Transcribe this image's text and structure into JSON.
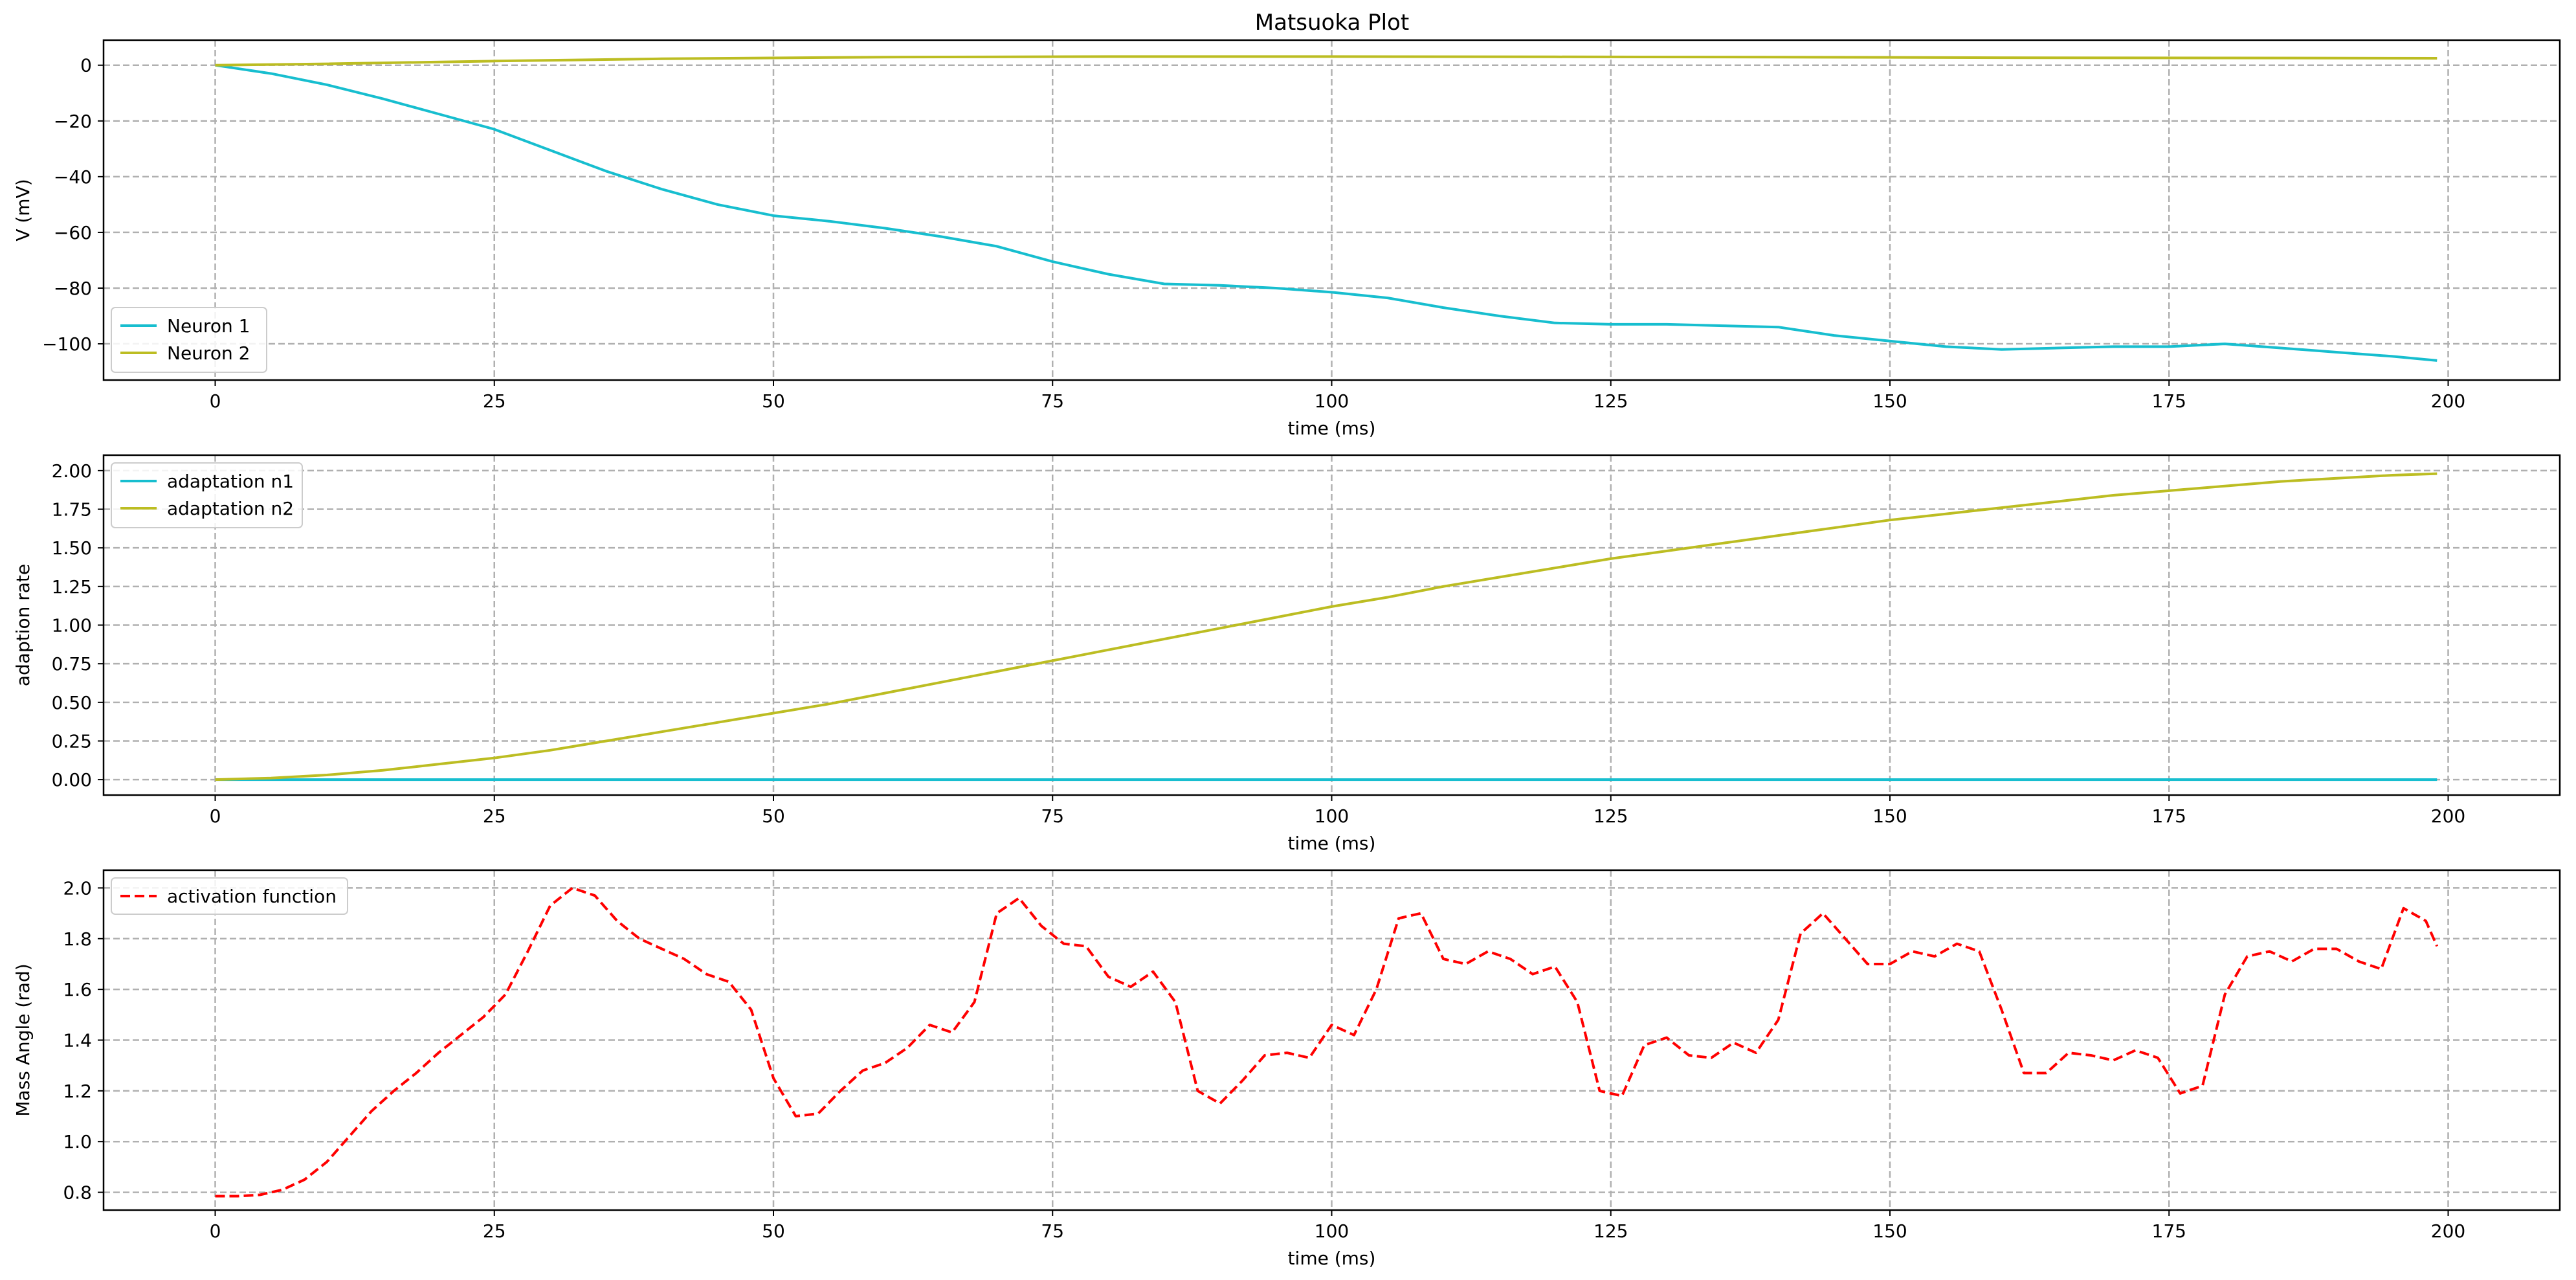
{
  "figure": {
    "title": "Matsuoka Plot"
  },
  "chart_data": [
    {
      "type": "line",
      "xlabel": "time (ms)",
      "ylabel": "V (mV)",
      "xlim": [
        -10,
        210
      ],
      "ylim": [
        -113,
        9
      ],
      "xticks": [
        0,
        25,
        50,
        75,
        100,
        125,
        150,
        175,
        200
      ],
      "yticks": [
        0,
        -20,
        -40,
        -60,
        -80,
        -100
      ],
      "grid": true,
      "legend_position": "lower-left",
      "series": [
        {
          "name": "Neuron 1",
          "color": "#17becf",
          "dash": "solid",
          "points": [
            [
              0,
              0
            ],
            [
              5,
              -3
            ],
            [
              10,
              -7
            ],
            [
              15,
              -12
            ],
            [
              20,
              -17.5
            ],
            [
              25,
              -23
            ],
            [
              30,
              -30.5
            ],
            [
              35,
              -38
            ],
            [
              40,
              -44.5
            ],
            [
              45,
              -50
            ],
            [
              50,
              -54
            ],
            [
              55,
              -56
            ],
            [
              60,
              -58.5
            ],
            [
              65,
              -61.5
            ],
            [
              70,
              -65
            ],
            [
              75,
              -70.5
            ],
            [
              80,
              -75
            ],
            [
              85,
              -78.5
            ],
            [
              90,
              -79
            ],
            [
              95,
              -80
            ],
            [
              100,
              -81.5
            ],
            [
              105,
              -83.5
            ],
            [
              110,
              -87
            ],
            [
              115,
              -90
            ],
            [
              120,
              -92.5
            ],
            [
              125,
              -93
            ],
            [
              130,
              -93
            ],
            [
              135,
              -93.5
            ],
            [
              140,
              -94
            ],
            [
              145,
              -97
            ],
            [
              150,
              -99
            ],
            [
              155,
              -101
            ],
            [
              160,
              -102
            ],
            [
              165,
              -101.5
            ],
            [
              170,
              -101
            ],
            [
              175,
              -101
            ],
            [
              180,
              -100
            ],
            [
              185,
              -101.5
            ],
            [
              190,
              -103
            ],
            [
              195,
              -104.5
            ],
            [
              199,
              -106
            ]
          ]
        },
        {
          "name": "Neuron 2",
          "color": "#bcbd22",
          "dash": "solid",
          "points": [
            [
              0,
              0
            ],
            [
              10,
              0.5
            ],
            [
              25,
              1.5
            ],
            [
              40,
              2.3
            ],
            [
              60,
              2.9
            ],
            [
              80,
              3.1
            ],
            [
              100,
              3.1
            ],
            [
              120,
              3.0
            ],
            [
              140,
              2.9
            ],
            [
              160,
              2.7
            ],
            [
              180,
              2.6
            ],
            [
              199,
              2.5
            ]
          ]
        }
      ]
    },
    {
      "type": "line",
      "xlabel": "time (ms)",
      "ylabel": "adaption rate",
      "xlim": [
        -10,
        210
      ],
      "ylim": [
        -0.1,
        2.1
      ],
      "xticks": [
        0,
        25,
        50,
        75,
        100,
        125,
        150,
        175,
        200
      ],
      "yticks": [
        "0.00",
        "0.25",
        "0.50",
        "0.75",
        "1.00",
        "1.25",
        "1.50",
        "1.75",
        "2.00"
      ],
      "grid": true,
      "legend_position": "upper-left",
      "series": [
        {
          "name": "adaptation n1",
          "color": "#17becf",
          "dash": "solid",
          "points": [
            [
              0,
              0
            ],
            [
              199,
              0
            ]
          ]
        },
        {
          "name": "adaptation n2",
          "color": "#bcbd22",
          "dash": "solid",
          "points": [
            [
              0,
              0
            ],
            [
              5,
              0.01
            ],
            [
              10,
              0.03
            ],
            [
              15,
              0.06
            ],
            [
              20,
              0.1
            ],
            [
              25,
              0.14
            ],
            [
              30,
              0.19
            ],
            [
              35,
              0.25
            ],
            [
              40,
              0.31
            ],
            [
              45,
              0.37
            ],
            [
              50,
              0.43
            ],
            [
              55,
              0.49
            ],
            [
              60,
              0.56
            ],
            [
              65,
              0.63
            ],
            [
              70,
              0.7
            ],
            [
              75,
              0.77
            ],
            [
              80,
              0.84
            ],
            [
              85,
              0.91
            ],
            [
              90,
              0.98
            ],
            [
              95,
              1.05
            ],
            [
              100,
              1.12
            ],
            [
              105,
              1.18
            ],
            [
              110,
              1.25
            ],
            [
              115,
              1.31
            ],
            [
              120,
              1.37
            ],
            [
              125,
              1.43
            ],
            [
              130,
              1.48
            ],
            [
              135,
              1.53
            ],
            [
              140,
              1.58
            ],
            [
              145,
              1.63
            ],
            [
              150,
              1.68
            ],
            [
              155,
              1.72
            ],
            [
              160,
              1.76
            ],
            [
              165,
              1.8
            ],
            [
              170,
              1.84
            ],
            [
              175,
              1.87
            ],
            [
              180,
              1.9
            ],
            [
              185,
              1.93
            ],
            [
              190,
              1.95
            ],
            [
              195,
              1.97
            ],
            [
              199,
              1.98
            ]
          ]
        }
      ]
    },
    {
      "type": "line",
      "xlabel": "time (ms)",
      "ylabel": "Mass Angle (rad)",
      "xlim": [
        -10,
        210
      ],
      "ylim": [
        0.73,
        2.07
      ],
      "xticks": [
        0,
        25,
        50,
        75,
        100,
        125,
        150,
        175,
        200
      ],
      "yticks": [
        "0.8",
        "1.0",
        "1.2",
        "1.4",
        "1.6",
        "1.8",
        "2.0"
      ],
      "grid": true,
      "legend_position": "upper-left",
      "series": [
        {
          "name": "activation function",
          "color": "#ff0000",
          "dash": "dashed",
          "points": [
            [
              0,
              0.785
            ],
            [
              2,
              0.785
            ],
            [
              4,
              0.79
            ],
            [
              6,
              0.81
            ],
            [
              8,
              0.85
            ],
            [
              10,
              0.92
            ],
            [
              12,
              1.02
            ],
            [
              14,
              1.12
            ],
            [
              16,
              1.2
            ],
            [
              18,
              1.27
            ],
            [
              20,
              1.35
            ],
            [
              22,
              1.42
            ],
            [
              24,
              1.49
            ],
            [
              26,
              1.58
            ],
            [
              28,
              1.75
            ],
            [
              30,
              1.93
            ],
            [
              32,
              2.0
            ],
            [
              34,
              1.97
            ],
            [
              36,
              1.87
            ],
            [
              38,
              1.8
            ],
            [
              40,
              1.76
            ],
            [
              42,
              1.72
            ],
            [
              44,
              1.66
            ],
            [
              46,
              1.63
            ],
            [
              48,
              1.52
            ],
            [
              50,
              1.25
            ],
            [
              52,
              1.1
            ],
            [
              54,
              1.11
            ],
            [
              56,
              1.2
            ],
            [
              58,
              1.28
            ],
            [
              60,
              1.31
            ],
            [
              62,
              1.37
            ],
            [
              64,
              1.46
            ],
            [
              66,
              1.43
            ],
            [
              68,
              1.55
            ],
            [
              70,
              1.9
            ],
            [
              72,
              1.96
            ],
            [
              74,
              1.85
            ],
            [
              76,
              1.78
            ],
            [
              78,
              1.77
            ],
            [
              80,
              1.65
            ],
            [
              82,
              1.61
            ],
            [
              84,
              1.67
            ],
            [
              86,
              1.55
            ],
            [
              88,
              1.2
            ],
            [
              90,
              1.15
            ],
            [
              92,
              1.24
            ],
            [
              94,
              1.34
            ],
            [
              96,
              1.35
            ],
            [
              98,
              1.33
            ],
            [
              100,
              1.46
            ],
            [
              102,
              1.42
            ],
            [
              104,
              1.6
            ],
            [
              106,
              1.88
            ],
            [
              108,
              1.9
            ],
            [
              110,
              1.72
            ],
            [
              112,
              1.7
            ],
            [
              114,
              1.75
            ],
            [
              116,
              1.72
            ],
            [
              118,
              1.66
            ],
            [
              120,
              1.69
            ],
            [
              122,
              1.55
            ],
            [
              124,
              1.2
            ],
            [
              126,
              1.18
            ],
            [
              128,
              1.38
            ],
            [
              130,
              1.41
            ],
            [
              132,
              1.34
            ],
            [
              134,
              1.33
            ],
            [
              136,
              1.39
            ],
            [
              138,
              1.35
            ],
            [
              140,
              1.48
            ],
            [
              142,
              1.82
            ],
            [
              144,
              1.9
            ],
            [
              146,
              1.8
            ],
            [
              148,
              1.7
            ],
            [
              150,
              1.7
            ],
            [
              152,
              1.75
            ],
            [
              154,
              1.73
            ],
            [
              156,
              1.78
            ],
            [
              158,
              1.75
            ],
            [
              160,
              1.52
            ],
            [
              162,
              1.27
            ],
            [
              164,
              1.27
            ],
            [
              166,
              1.35
            ],
            [
              168,
              1.34
            ],
            [
              170,
              1.32
            ],
            [
              172,
              1.36
            ],
            [
              174,
              1.33
            ],
            [
              176,
              1.19
            ],
            [
              178,
              1.22
            ],
            [
              180,
              1.58
            ],
            [
              182,
              1.73
            ],
            [
              184,
              1.75
            ],
            [
              186,
              1.71
            ],
            [
              188,
              1.76
            ],
            [
              190,
              1.76
            ],
            [
              192,
              1.71
            ],
            [
              194,
              1.68
            ],
            [
              196,
              1.92
            ],
            [
              198,
              1.87
            ],
            [
              199,
              1.77
            ]
          ]
        }
      ]
    }
  ]
}
